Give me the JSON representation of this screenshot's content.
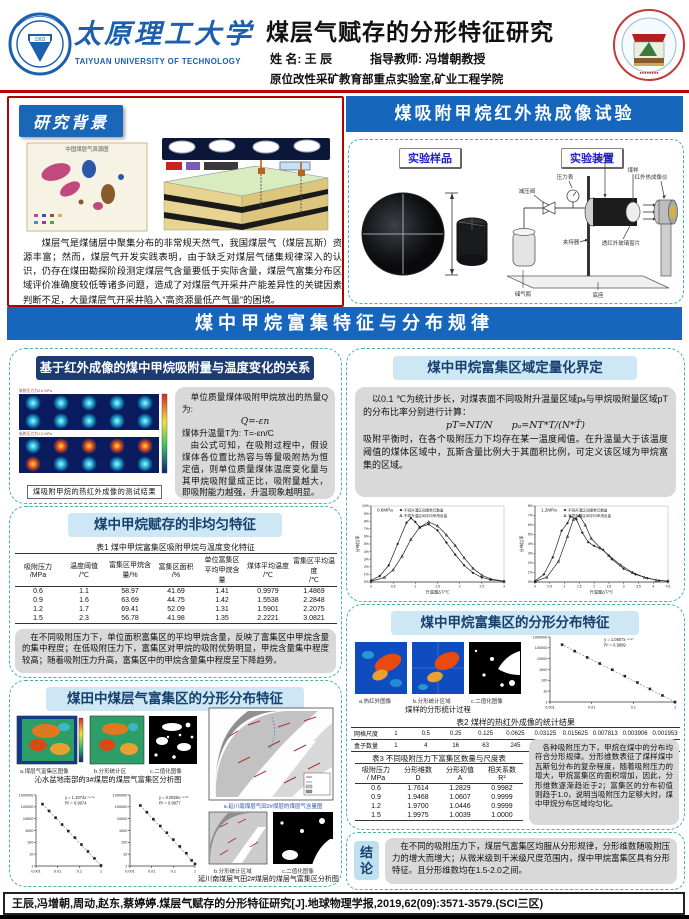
{
  "header": {
    "university_cn": "太原理工大学",
    "university_en": "TAIYUAN UNIVERSITY OF TECHNOLOGY",
    "logo_year": "1902",
    "title": "煤层气赋存的分形特征研究",
    "name_label": "姓 名: 王 辰",
    "advisor_label": "指导教师: 冯增朝教授",
    "lab": "原位改性采矿教育部重点实验室,矿业工程学院"
  },
  "background": {
    "title": "研究背景",
    "map_title": "中国煤层气资源图",
    "text": "煤层气是煤储层中聚集分布的非常规天然气，我国煤层气（煤层瓦斯）资源丰富；然而，煤层气开发实践表明，由于缺乏对煤层气储集规律深入的认识，仍存在煤田勘探阶段测定煤层气含量要低于实际含量，煤层气富集分布区域评价准确度较低等诸多问题，造成了对煤层气开采井产能差异性的关键因素判断不足，大量煤层气开采井陷入“高资源量低产气量”的困境。"
  },
  "experiment": {
    "title": "煤吸附甲烷红外热成像试验",
    "sample_label": "实验样品",
    "device_label": "实验装置",
    "parts": {
      "vessel": "耐压筒",
      "sample": "煤样",
      "gauge": "压力表",
      "valve": "减压阀",
      "camera": "红外热成像仪",
      "holder": "夹持器",
      "window": "透红外玻璃窗片",
      "bottle": "储气瓶",
      "base": "底座"
    }
  },
  "main_banner": "煤中甲烷富集特征与分布规律",
  "sec_ir": {
    "title": "基于红外成像的煤中甲烷吸附量与温度变化的关系",
    "img_label1": "吸附压力为0.6 MPa",
    "img_label2": "吸附压力为1.2 MPa",
    "caption": "煤吸附甲烷的热红外成像的测试结果",
    "line1": "单位质量煤体吸附甲烷放出的热量Q为:",
    "f1": "Q=-εn",
    "line2": "煤体升温量T为: T=-εn/C",
    "line3": "由公式可知，在吸附过程中，假设煤体各位置比热容与等量吸附热为恒定值，则单位质量煤体温度变化量与其甲烷吸附量成正比，吸附量越大，即吸附能力越强，升温现象越明显。"
  },
  "sec_nonuniform": {
    "title": "煤中甲烷赋存的非均匀特征",
    "table1": {
      "caption": "表1 煤中甲烷富集区吸附甲烷与温度变化特征",
      "headers": [
        "吸附压力\n/MPa",
        "温度阈值\n/℃",
        "富集区甲烷含\n量/%",
        "富集区面积\n/%",
        "单位富集区\n平均甲烷含\n量",
        "煤体平均温度\n/℃",
        "富集区平均温度\n/℃"
      ],
      "rows": [
        [
          "0.6",
          "1.1",
          "58.97",
          "41.69",
          "1.41",
          "0.9979",
          "1.4869"
        ],
        [
          "0.9",
          "1.6",
          "63.69",
          "44.75",
          "1.42",
          "1.5538",
          "2.2848"
        ],
        [
          "1.2",
          "1.7",
          "69.41",
          "52.09",
          "1.31",
          "1.5901",
          "2.2075"
        ],
        [
          "1.5",
          "2.3",
          "56.78",
          "41.98",
          "1.35",
          "2.2221",
          "3.0821"
        ]
      ]
    },
    "text": "在不同吸附压力下，单位面积富集区的平均甲烷含量，反映了富集区中甲烷含量的集中程度；在低吸附压力下，富集区对甲烷的吸附优势明显，甲烷含量集中程度较高；随着吸附压力升高，富集区中的甲烷含量集中程度呈下降趋势。"
  },
  "sec_field": {
    "title": "煤田中煤层气富集区的分形分布特征",
    "sub_a": "a.煤层气富集区图像",
    "sub_b": "b.分形统计区",
    "sub_c": "c.二值化图像",
    "caption1": "沁水盆地南部的3#煤层的煤层气富集区分析图",
    "cap_map_a": "a.延川南煤层气田2#煤层的煤层气含量图",
    "sub_map_b": "b.分形统计区域",
    "sub_map_c": "c.二值化图像",
    "caption2": "延川南煤层气田2#煤层的煤层气富集区分析图"
  },
  "sec_quant": {
    "title": "煤中甲烷富集区域定量化界定",
    "text1": "以0.1 ℃为统计步长，对煤表面不同吸附升温量区域pₐ与甲烷吸附量区域pT的分布比率分别进行计算：",
    "formula": "pT=NT/N　　pₐ=NT*T/(N*T̄)",
    "text2": "吸附平衡时，在各个吸附压力下均存在某一温度阈值。在升温量大于该温度阈值的煤体区域中，瓦斯含量比例大于其面积比例，可定义该区域为甲烷富集的区域。"
  },
  "sec_fractal": {
    "title": "煤中甲烷富集区的分形分布特征",
    "sub_a": "a.热红外图像",
    "sub_b": "b.分形统计区域",
    "sub_c": "c.二值化图像",
    "caption": "煤样的分形统计过程",
    "table2": {
      "caption": "表2 煤样的热红外成像的统计结果",
      "rows": [
        [
          "网格尺度",
          "1",
          "0.5",
          "0.25",
          "0.125",
          "0.0625",
          "0.03125",
          "0.015625",
          "0.007813",
          "0.003906",
          "0.001953"
        ],
        [
          "盒子数量",
          "1",
          "4",
          "16",
          "63",
          "245",
          "950",
          "3558",
          "13040",
          "49603",
          "196766"
        ]
      ]
    },
    "table3": {
      "caption": "表3 不同吸附压力下富集区数量与尺度表",
      "headers": [
        "吸附压力\n/ MPa",
        "分形维数\nD",
        "分形初值\nA",
        "相关系数\nR²"
      ],
      "rows": [
        [
          "0.6",
          "1.7614",
          "1.2829",
          "0.9982"
        ],
        [
          "0.9",
          "1.9468",
          "1.0607",
          "0.9999"
        ],
        [
          "1.2",
          "1.9700",
          "1.0446",
          "0.9999"
        ],
        [
          "1.5",
          "1.9975",
          "1.0039",
          "1.0000"
        ]
      ]
    },
    "text": "各种吸附压力下，甲烷在煤中的分布均符合分形规律。分形维数表征了煤样煤中瓦斯包分布的复杂程度，随着吸附压力的增大，甲烷富集区的面积增加，因此，分形维数逐渐趋近于2；富集区的分布初值则趋于1.0，说明当吸附压力足够大时，煤中甲烷分布区域均匀化。"
  },
  "conclusion": {
    "label": "结论",
    "text": "在不同的吸附压力下，煤层气富集区均服从分形规律，分形维数随吸附压力的增大而增大；从微米级到千米级尺度范围内，煤中甲烷富集区具有分形特征。且分形维数均在1.5-2.0之间。"
  },
  "reference": "王辰,冯增朝,周动,赵东,蔡婷婷.煤层气赋存的分形特征研究[J].地球物理学报,2019,62(09):3571-3579.(SCI三区)",
  "colors": {
    "banner_blue": "#1766bd",
    "navy_header": "#1d3b73",
    "light_blue_header": "#cde7f5",
    "teal_dash": "#44b3a2",
    "red_line": "#c00000",
    "gray_box": "#d9d9d9"
  },
  "chart_data": [
    {
      "id": "qinshui-box-counting",
      "type": "scatter",
      "scale": "log-log",
      "equation": "y = 1.1074x⁻¹·⁹⁴",
      "r2": "R² = 0.9974",
      "xlim": [
        0.001,
        1
      ],
      "ylim": [
        1,
        1000000
      ],
      "x_ticks": [
        0.001,
        0.01,
        0.1,
        1
      ],
      "points": [
        [
          0.002,
          170000
        ],
        [
          0.004,
          45000
        ],
        [
          0.008,
          12000
        ],
        [
          0.016,
          3200
        ],
        [
          0.031,
          900
        ],
        [
          0.0625,
          250
        ],
        [
          0.125,
          65
        ],
        [
          0.25,
          17
        ],
        [
          0.5,
          4.4
        ],
        [
          1,
          1.1
        ]
      ]
    },
    {
      "id": "yanchuan-box-counting",
      "type": "scatter",
      "scale": "log-log",
      "equation": "y = 0.0826x⁻¹·⁸⁷",
      "r2": "R² = 0.9877",
      "xlim": [
        0.001,
        1
      ],
      "ylim": [
        1,
        1000000
      ],
      "x_ticks": [
        0.001,
        0.01,
        0.1,
        1
      ],
      "points": [
        [
          0.003,
          130000
        ],
        [
          0.006,
          35000
        ],
        [
          0.012,
          9000
        ],
        [
          0.025,
          2400
        ],
        [
          0.05,
          650
        ],
        [
          0.1,
          170
        ],
        [
          0.2,
          45
        ],
        [
          0.4,
          12
        ],
        [
          0.7,
          3
        ],
        [
          1,
          1.5
        ]
      ]
    },
    {
      "id": "temperature-rise-distribution-0.6MPa",
      "type": "line",
      "title": "0.6MPa",
      "xlabel": "升温量ΔT/℃",
      "ylabel": "分布比率",
      "xlim": [
        0,
        3
      ],
      "x_step": 0.5,
      "ymax_pct": 10,
      "series": [
        {
          "name": "不同升温区间煤单元数量",
          "marker": "diamond",
          "points": [
            [
              0,
              0.2
            ],
            [
              0.2,
              0.8
            ],
            [
              0.4,
              2.2
            ],
            [
              0.6,
              5.0
            ],
            [
              0.8,
              7.8
            ],
            [
              0.9,
              8.4
            ],
            [
              1.0,
              7.9
            ],
            [
              1.1,
              7.2
            ],
            [
              1.3,
              7.6
            ],
            [
              1.5,
              6.8
            ],
            [
              1.7,
              5.2
            ],
            [
              1.9,
              3.6
            ],
            [
              2.1,
              2.2
            ],
            [
              2.3,
              1.2
            ],
            [
              2.5,
              0.6
            ],
            [
              2.7,
              0.3
            ],
            [
              3,
              0.1
            ]
          ]
        },
        {
          "name": "不同升温区间平均甲烷含量",
          "marker": "triangle",
          "points": [
            [
              0,
              0.1
            ],
            [
              0.3,
              0.6
            ],
            [
              0.5,
              1.6
            ],
            [
              0.7,
              3.4
            ],
            [
              0.9,
              5.6
            ],
            [
              1.1,
              7.2
            ],
            [
              1.3,
              7.9
            ],
            [
              1.5,
              7.4
            ],
            [
              1.7,
              6.2
            ],
            [
              1.9,
              4.8
            ],
            [
              2.1,
              3.2
            ],
            [
              2.3,
              1.8
            ],
            [
              2.5,
              0.9
            ],
            [
              2.7,
              0.4
            ],
            [
              3,
              0.1
            ]
          ]
        }
      ]
    },
    {
      "id": "temperature-rise-distribution-1.2MPa",
      "type": "line",
      "title": "1.2MPa",
      "xlabel": "升温量ΔT/℃",
      "ylabel": "分布比率",
      "xlim": [
        0,
        4.5
      ],
      "x_step": 0.5,
      "ymax_pct": 8,
      "series": [
        {
          "name": "不同升温区间煤单元数量",
          "marker": "diamond",
          "points": [
            [
              0,
              0.1
            ],
            [
              0.3,
              0.8
            ],
            [
              0.6,
              2.6
            ],
            [
              0.9,
              5.4
            ],
            [
              1.1,
              6.2
            ],
            [
              1.2,
              6.9
            ],
            [
              1.4,
              6.6
            ],
            [
              1.6,
              5.2
            ],
            [
              1.8,
              4.2
            ],
            [
              2.0,
              3.8
            ],
            [
              2.3,
              3.4
            ],
            [
              2.6,
              2.4
            ],
            [
              3.0,
              1.4
            ],
            [
              3.4,
              0.8
            ],
            [
              3.8,
              0.4
            ],
            [
              4.2,
              0.15
            ],
            [
              4.5,
              0.1
            ]
          ]
        },
        {
          "name": "不同升温区间平均甲烷含量",
          "marker": "triangle",
          "points": [
            [
              0,
              0.05
            ],
            [
              0.4,
              0.5
            ],
            [
              0.8,
              2.2
            ],
            [
              1.1,
              4.8
            ],
            [
              1.3,
              6.6
            ],
            [
              1.5,
              7.0
            ],
            [
              1.7,
              6.0
            ],
            [
              1.9,
              4.6
            ],
            [
              2.2,
              3.6
            ],
            [
              2.5,
              2.8
            ],
            [
              2.9,
              1.8
            ],
            [
              3.3,
              1.0
            ],
            [
              3.7,
              0.5
            ],
            [
              4.1,
              0.2
            ],
            [
              4.5,
              0.1
            ]
          ]
        }
      ]
    },
    {
      "id": "coal-sample-box-counting",
      "type": "scatter",
      "scale": "log-log",
      "equation": "y = 1.0807x⁻¹·⁸⁷",
      "r2": "R² = 0.9999",
      "xlim": [
        0.001,
        1
      ],
      "ylim": [
        1,
        1000000
      ],
      "x_ticks": [
        0.001,
        0.01,
        0.1,
        1
      ],
      "points": [
        [
          1,
          1
        ],
        [
          0.5,
          4
        ],
        [
          0.25,
          16
        ],
        [
          0.125,
          63
        ],
        [
          0.0625,
          245
        ],
        [
          0.03125,
          950
        ],
        [
          0.015625,
          3558
        ],
        [
          0.007813,
          13040
        ],
        [
          0.003906,
          49603
        ],
        [
          0.001953,
          196766
        ]
      ]
    }
  ]
}
